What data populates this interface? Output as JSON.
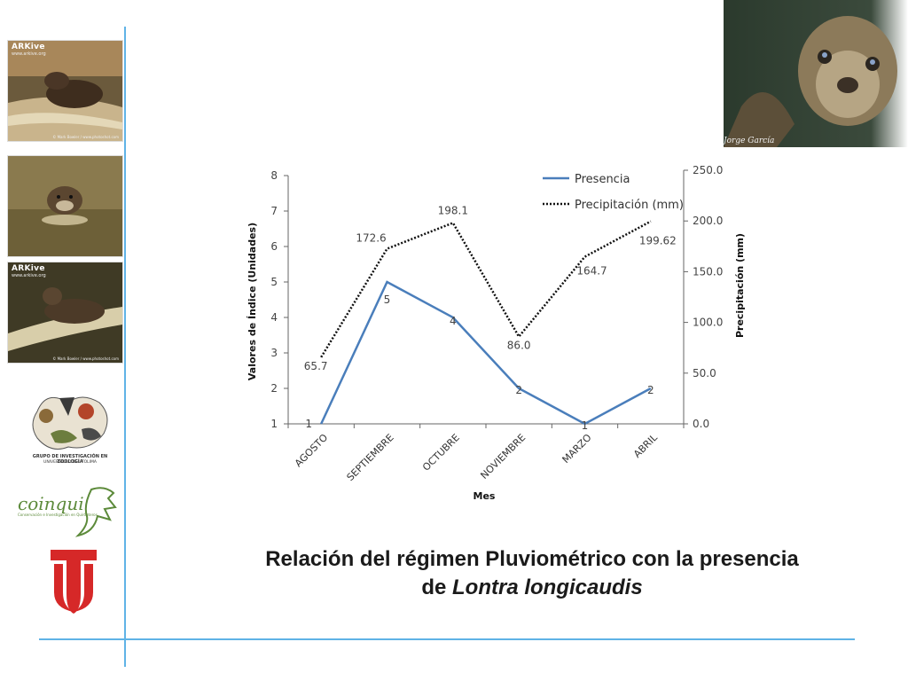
{
  "sidebar": {
    "photos": [
      {
        "brand": "ARKive",
        "site": "www.arkive.org",
        "credit": "© Mark Bowler / www.photoshot.com"
      },
      {
        "brand": "",
        "site": "",
        "credit": ""
      },
      {
        "brand": "ARKive",
        "site": "www.arkive.org",
        "credit": "© Mark Bowler / www.photoshot.com"
      }
    ],
    "logo_group_line1": "GRUPO DE INVESTIGACIÓN EN ZOOLOGÍA",
    "logo_group_line2": "UNIVERSIDAD DEL TOLIMA",
    "logo_coinqui": "coinqui",
    "logo_coinqui_sub": "Conservación e Investigación en Quirópteros",
    "university_logo_color": "#d62828"
  },
  "top_photo": {
    "credit": "Jorge García"
  },
  "chart_data": {
    "type": "line",
    "categories": [
      "AGOSTO",
      "SEPTIEMBRE",
      "OCTUBRE",
      "NOVIEMBRE",
      "MARZO",
      "ABRIL"
    ],
    "series": [
      {
        "name": "Presencia",
        "axis": "left",
        "style": "solid",
        "color": "#4a7ebb",
        "values": [
          1,
          5,
          4,
          2,
          1,
          2
        ],
        "labels": [
          "1",
          "5",
          "4",
          "2",
          "1",
          "2"
        ]
      },
      {
        "name": "Precipitación (mm)",
        "axis": "right",
        "style": "dotted",
        "color": "#111111",
        "values": [
          65.7,
          172.6,
          198.1,
          86.0,
          164.7,
          199.62
        ],
        "labels": [
          "65.7",
          "172.6",
          "198.1",
          "86.0",
          "164.7",
          "199.62"
        ]
      }
    ],
    "ylabel": "Valores de Índice (Unidades)",
    "y2label": "Precipitación (mm)",
    "xlabel": "Mes",
    "ylim": [
      1,
      8
    ],
    "y2lim": [
      0,
      250
    ],
    "yticks": [
      "1",
      "2",
      "3",
      "4",
      "5",
      "6",
      "7",
      "8"
    ],
    "y2ticks": [
      "0.0",
      "50.0",
      "100.0",
      "150.0",
      "200.0",
      "250.0"
    ],
    "legend_position": "top-right"
  },
  "caption": {
    "line1": "Relación del régimen Pluviométrico con la presencia",
    "line2_prefix": "de ",
    "line2_species": "Lontra longicaudis"
  }
}
